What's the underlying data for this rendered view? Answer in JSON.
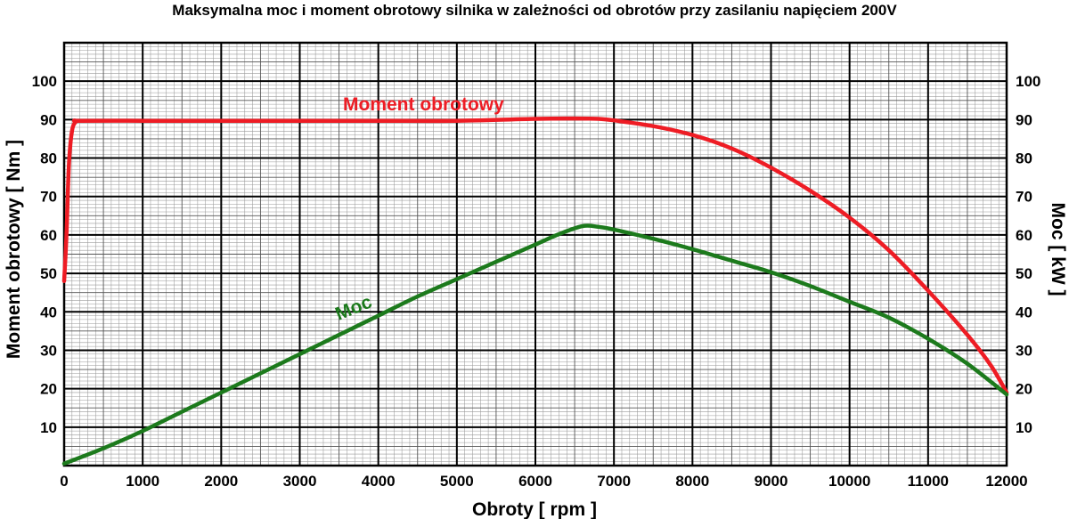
{
  "chart_data": {
    "type": "line",
    "title": "Maksymalna moc i moment obrotowy silnika w zależności od obrotów przy zasilaniu napięciem 200V",
    "xlabel": "Obroty [ rpm ]",
    "ylabel_left": "Moment obrotowy [ Nm ]",
    "ylabel_right": "Moc [ kW ]",
    "xlim": [
      0,
      12000
    ],
    "ylim": [
      0,
      110
    ],
    "x_ticks": [
      "0",
      "1000",
      "2000",
      "3000",
      "4000",
      "5000",
      "6000",
      "7000",
      "8000",
      "9000",
      "10000",
      "11000",
      "12000"
    ],
    "y_ticks": [
      "10",
      "20",
      "30",
      "40",
      "50",
      "60",
      "70",
      "80",
      "90",
      "100"
    ],
    "grid": "mm graph paper (major every 1000 rpm / 10 units)",
    "series": [
      {
        "name": "Moment obrotowy",
        "color": "#ee1c24",
        "axis": "left",
        "x": [
          0,
          30,
          60,
          100,
          150,
          200,
          1000,
          2000,
          3000,
          4000,
          5000,
          6000,
          6500,
          6800,
          7000,
          7500,
          8000,
          8500,
          9000,
          9500,
          10000,
          10500,
          11000,
          11500,
          11800,
          12000
        ],
        "y": [
          48,
          60,
          78,
          87,
          89.5,
          89.7,
          89.7,
          89.7,
          89.7,
          89.7,
          89.7,
          90.2,
          90.3,
          90.2,
          89.8,
          88.3,
          86,
          82.5,
          77.5,
          71.5,
          64.5,
          56,
          45.5,
          34,
          26,
          19
        ]
      },
      {
        "name": "Moc",
        "color": "#1c7a1c",
        "axis": "right",
        "x": [
          0,
          500,
          1000,
          1500,
          2000,
          2500,
          3000,
          3500,
          4000,
          4500,
          5000,
          5500,
          6000,
          6300,
          6600,
          6800,
          7000,
          7500,
          8000,
          8500,
          9000,
          9500,
          10000,
          10500,
          11000,
          11500,
          12000
        ],
        "y": [
          0.5,
          4.5,
          9,
          14,
          19,
          24,
          29,
          34,
          39,
          44,
          48.5,
          53,
          57.5,
          60.2,
          62.3,
          62.1,
          61.4,
          59,
          56.3,
          53.3,
          50.3,
          46.7,
          42.6,
          38.5,
          33,
          26.5,
          18.5
        ]
      }
    ]
  }
}
